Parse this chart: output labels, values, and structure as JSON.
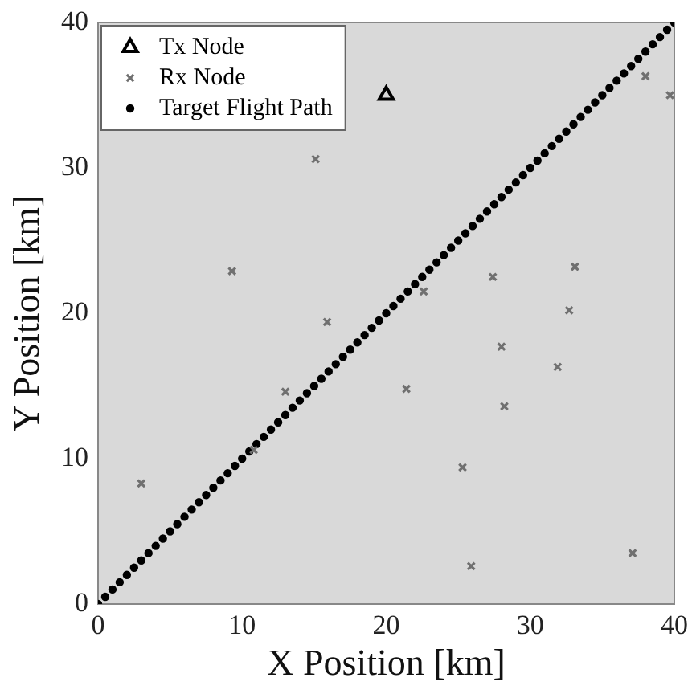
{
  "chart_data": {
    "type": "scatter",
    "xlabel": "X Position [km]",
    "ylabel": "Y Position [km]",
    "xlim": [
      0,
      40
    ],
    "ylim": [
      0,
      40
    ],
    "xticks": [
      0,
      10,
      20,
      30,
      40
    ],
    "yticks": [
      0,
      10,
      20,
      30,
      40
    ],
    "grid": false,
    "legend": "top left",
    "series": [
      {
        "name": "Tx Node",
        "color": "#000000",
        "marker": "triangle",
        "x": [
          20
        ],
        "values": [
          35
        ]
      },
      {
        "name": "Rx Node",
        "color": "#707070",
        "marker": "cross",
        "x": [
          38,
          39.7,
          15.1,
          9.3,
          22.6,
          27.4,
          33.1,
          32.7,
          15.9,
          28,
          31.9,
          13,
          21.4,
          28.2,
          10.8,
          3,
          25.3,
          25.9,
          37.1
        ],
        "values": [
          36.3,
          35,
          30.6,
          22.9,
          21.5,
          22.5,
          23.2,
          20.2,
          19.4,
          17.7,
          16.3,
          14.6,
          14.8,
          13.6,
          10.6,
          8.3,
          9.4,
          2.6,
          3.5
        ]
      },
      {
        "name": "Target Flight Path",
        "color": "#000000",
        "marker": "circle",
        "x": [
          0,
          0.5,
          1,
          1.5,
          2,
          2.5,
          3,
          3.5,
          4,
          4.5,
          5,
          5.5,
          6,
          6.5,
          7,
          7.5,
          8,
          8.5,
          9,
          9.5,
          10,
          10.5,
          11,
          11.5,
          12,
          12.5,
          13,
          13.5,
          14,
          14.5,
          15,
          15.5,
          16,
          16.5,
          17,
          17.5,
          18,
          18.5,
          19,
          19.5,
          20,
          20.5,
          21,
          21.5,
          22,
          22.5,
          23,
          23.5,
          24,
          24.5,
          25,
          25.5,
          26,
          26.5,
          27,
          27.5,
          28,
          28.5,
          29,
          29.5,
          30,
          30.5,
          31,
          31.5,
          32,
          32.5,
          33,
          33.5,
          34,
          34.5,
          35,
          35.5,
          36,
          36.5,
          37,
          37.5,
          38,
          38.5,
          39,
          39.5,
          40
        ],
        "values": [
          0,
          0.5,
          1,
          1.5,
          2,
          2.5,
          3,
          3.5,
          4,
          4.5,
          5,
          5.5,
          6,
          6.5,
          7,
          7.5,
          8,
          8.5,
          9,
          9.5,
          10,
          10.5,
          11,
          11.5,
          12,
          12.5,
          13,
          13.5,
          14,
          14.5,
          15,
          15.5,
          16,
          16.5,
          17,
          17.5,
          18,
          18.5,
          19,
          19.5,
          20,
          20.5,
          21,
          21.5,
          22,
          22.5,
          23,
          23.5,
          24,
          24.5,
          25,
          25.5,
          26,
          26.5,
          27,
          27.5,
          28,
          28.5,
          29,
          29.5,
          30,
          30.5,
          31,
          31.5,
          32,
          32.5,
          33,
          33.5,
          34,
          34.5,
          35,
          35.5,
          36,
          36.5,
          37,
          37.5,
          38,
          38.5,
          39,
          39.5,
          40
        ]
      }
    ]
  }
}
